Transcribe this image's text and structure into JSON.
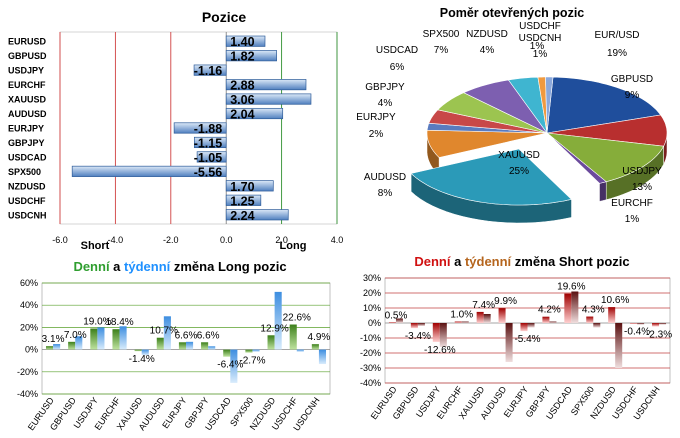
{
  "colors": {
    "green": "#2f9e2f",
    "blue": "#1e90ff",
    "red": "#d01010",
    "brown": "#b5651d",
    "bar_blue": "#6f9fd8",
    "long_green": "#5aa02c",
    "long_blue": "#6ab0f0",
    "short_red": "#c00000",
    "short_dark": "#7a2020"
  },
  "chart_data": [
    {
      "type": "bar",
      "orientation": "horizontal",
      "title": "Pozice",
      "categories": [
        "EURUSD",
        "GBPUSD",
        "USDJPY",
        "EURCHF",
        "XAUUSD",
        "AUDUSD",
        "EURJPY",
        "GBPJPY",
        "USDCAD",
        "SPX500",
        "NZDUSD",
        "USDCHF",
        "USDCNH"
      ],
      "values": [
        1.4,
        1.82,
        -1.16,
        2.88,
        3.06,
        2.04,
        -1.88,
        -1.15,
        -1.05,
        -5.56,
        1.7,
        1.25,
        2.24
      ],
      "value_labels": [
        "1.40",
        "1.82",
        "-1.16",
        "2.88",
        "3.06",
        "2.04",
        "-1.88",
        "-1.15",
        "-1.05",
        "-5.56",
        "1.70",
        "1.25",
        "2.24"
      ],
      "xlim": [
        -6,
        4
      ],
      "ticks": [
        "-6.0",
        "-4.0",
        "-2.0",
        "0.0",
        "2.0",
        "4.0"
      ],
      "xlabel_short": "Short",
      "xlabel_long": "Long"
    },
    {
      "type": "pie",
      "title": "Poměr  otevřených  pozic",
      "slices": [
        {
          "name": "EUR/USD",
          "value": 19,
          "label": "19%",
          "color": "#1f4e9c"
        },
        {
          "name": "GBPUSD",
          "value": 9,
          "label": "9%",
          "color": "#b82f2f"
        },
        {
          "name": "USDJPY",
          "value": 13,
          "label": "13%",
          "color": "#86ad3a"
        },
        {
          "name": "EURCHF",
          "value": 1,
          "label": "1%",
          "color": "#6b4a9c"
        },
        {
          "name": "XAUUSD",
          "value": 25,
          "label": "25%",
          "color": "#2b9ab8"
        },
        {
          "name": "AUDUSD",
          "value": 8,
          "label": "8%",
          "color": "#e0872d"
        },
        {
          "name": "EURJPY",
          "value": 2,
          "label": "2%",
          "color": "#5a7bbf"
        },
        {
          "name": "GBPJPY",
          "value": 4,
          "label": "4%",
          "color": "#c84848"
        },
        {
          "name": "USDCAD",
          "value": 6,
          "label": "6%",
          "color": "#9cc450"
        },
        {
          "name": "SPX500",
          "value": 7,
          "label": "7%",
          "color": "#7d5fb0"
        },
        {
          "name": "NZDUSD",
          "value": 4,
          "label": "4%",
          "color": "#3fb5d0"
        },
        {
          "name": "USDCHF",
          "value": 1,
          "label": "1%",
          "color": "#f09a40"
        },
        {
          "name": "USDCNH",
          "value": 1,
          "label": "1%",
          "color": "#8aa8dc"
        }
      ]
    },
    {
      "type": "bar",
      "title_parts": [
        "Denní",
        " a ",
        "týdenní",
        " změna Long pozic"
      ],
      "categories": [
        "EURUSD",
        "GBPUSD",
        "USDJPY",
        "EURCHF",
        "XAUUSD",
        "AUDUSD",
        "EURJPY",
        "GBPJPY",
        "USDCAD",
        "SPX500",
        "NZDUSD",
        "USDCHF",
        "USDCNH"
      ],
      "series": [
        {
          "name": "Denní",
          "values": [
            3.1,
            7.0,
            19.0,
            18.4,
            -1.4,
            10.7,
            6.6,
            6.6,
            -6.4,
            -2.7,
            12.9,
            22.6,
            4.9
          ]
        },
        {
          "name": "Týdenní",
          "values": [
            5,
            12,
            20,
            21,
            -5,
            30,
            7,
            3,
            -30,
            -2,
            52,
            -2,
            -13
          ]
        }
      ],
      "data_labels": [
        "3.1%",
        "7.0%",
        "19.0%",
        "18.4%",
        "-1.4%",
        "10.7%",
        "6.6%",
        "6.6%",
        "-6.4%",
        "-2.7%",
        "12.9%",
        "22.6%",
        "4.9%"
      ],
      "ylim": [
        -40,
        60
      ],
      "ticks": [
        "60%",
        "40%",
        "20%",
        "0%",
        "-20%",
        "-40%"
      ]
    },
    {
      "type": "bar",
      "title_parts": [
        "Denní",
        " a ",
        "týdenní",
        " změna Short pozic"
      ],
      "categories": [
        "EURUSD",
        "GBPUSD",
        "USDJPY",
        "EURCHF",
        "XAUUSD",
        "AUDUSD",
        "EURJPY",
        "GBPJPY",
        "USDCAD",
        "SPX500",
        "NZDUSD",
        "USDCHF",
        "USDCNH"
      ],
      "series": [
        {
          "name": "Denní",
          "values": [
            0.5,
            -3.4,
            -12.6,
            1.0,
            7.4,
            9.9,
            -5.4,
            4.2,
            19.6,
            4.3,
            10.6,
            -0.4,
            -2.3
          ]
        },
        {
          "name": "Týdenní",
          "values": [
            3,
            -2,
            -16,
            1,
            6,
            -26,
            -3,
            1,
            21,
            -3,
            -30,
            -1,
            -1
          ]
        }
      ],
      "data_labels": [
        "0.5%",
        "-3.4%",
        "-12.6%",
        "1.0%",
        "7.4%",
        "9.9%",
        "-5.4%",
        "4.2%",
        "19.6%",
        "4.3%",
        "10.6%",
        "-0.4%",
        "-2.3%"
      ],
      "ylim": [
        -40,
        30
      ],
      "ticks": [
        "30%",
        "20%",
        "10%",
        "0%",
        "-10%",
        "-20%",
        "-30%",
        "-40%"
      ]
    }
  ]
}
